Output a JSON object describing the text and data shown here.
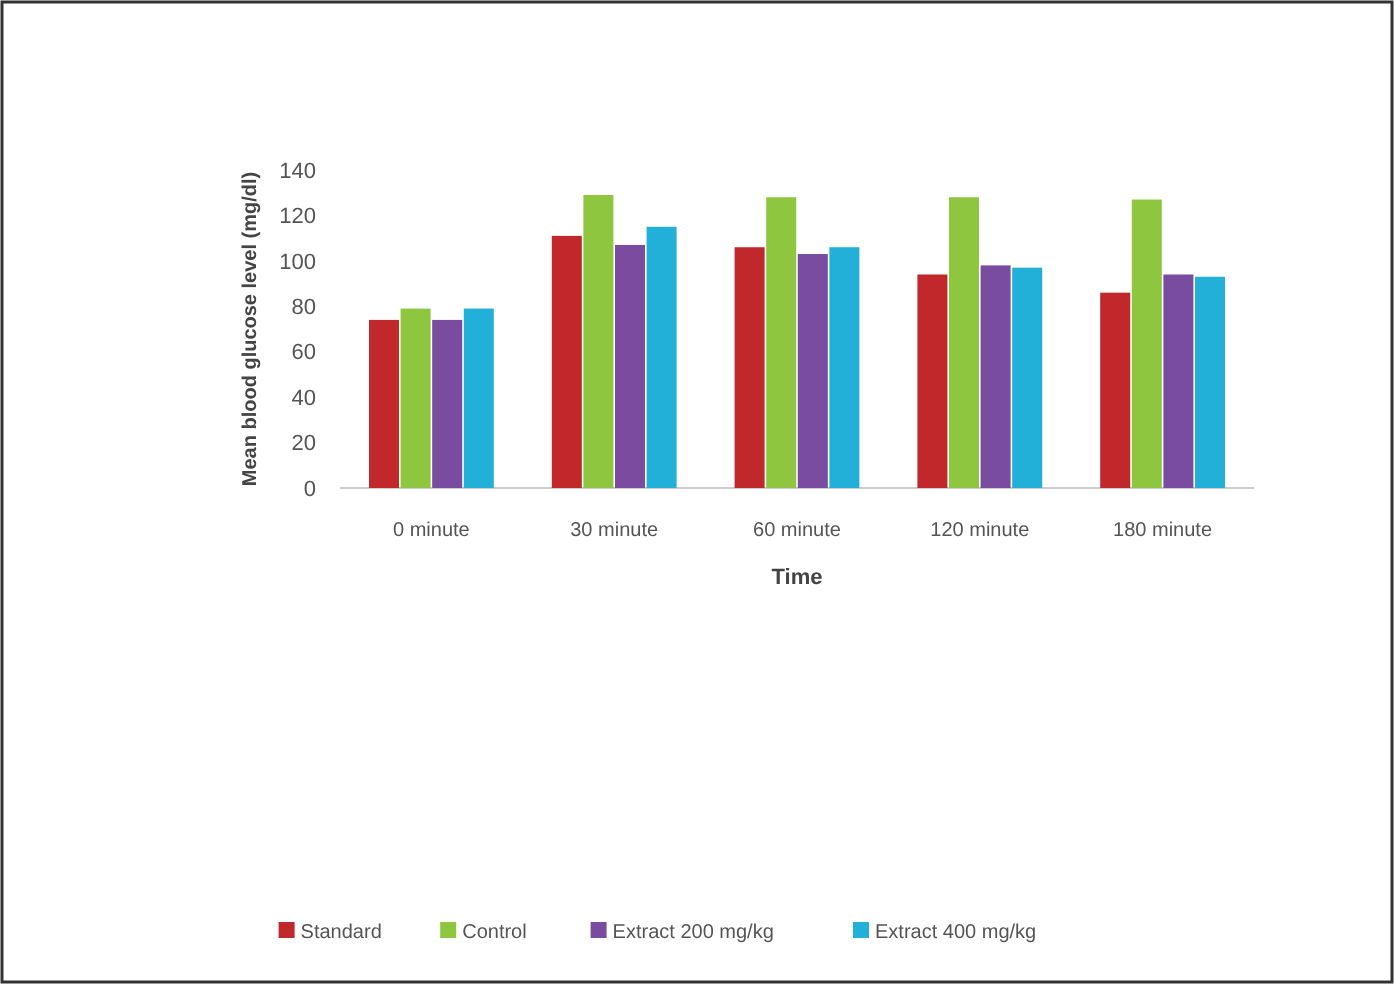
{
  "chart_data": {
    "type": "bar",
    "xlabel": "Time",
    "ylabel": "Mean blood glucose level (mg/dl)",
    "categories": [
      "0 minute",
      "30 minute",
      "60 minute",
      "120 minute",
      "180 minute"
    ],
    "series": [
      {
        "name": "Standard",
        "color": "#c0282b",
        "values": [
          74,
          111,
          106,
          94,
          86
        ]
      },
      {
        "name": "Control",
        "color": "#8ec63f",
        "values": [
          79,
          129,
          128,
          128,
          127
        ]
      },
      {
        "name": "Extract 200 mg/kg",
        "color": "#7a4ca0",
        "values": [
          74,
          107,
          103,
          98,
          94
        ]
      },
      {
        "name": "Extract 400 mg/kg",
        "color": "#22b0d8",
        "values": [
          79,
          115,
          106,
          97,
          93
        ]
      }
    ],
    "ylim": [
      0,
      140
    ],
    "yticks": [
      0,
      20,
      40,
      60,
      80,
      100,
      120,
      140
    ],
    "grid": false,
    "legend": "bottom"
  }
}
